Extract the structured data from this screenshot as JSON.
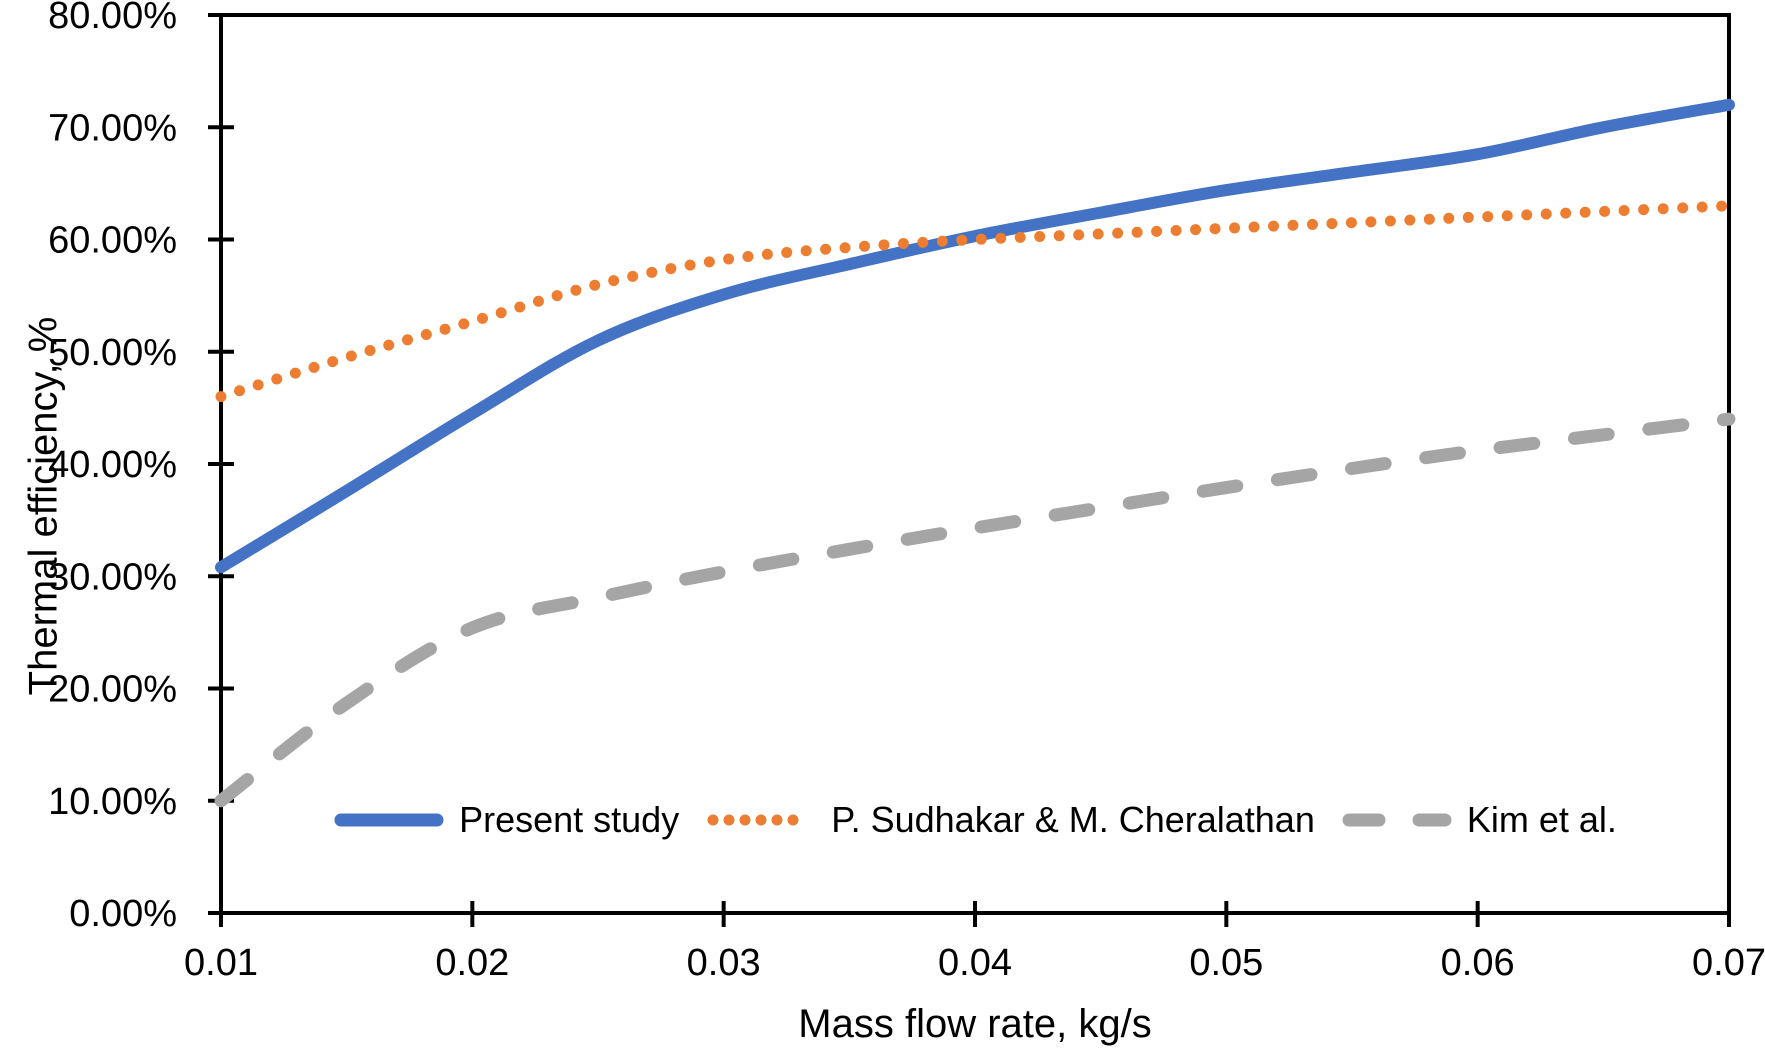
{
  "figure": {
    "background": "#ffffff",
    "axis_color": "#000000",
    "text_color": "#000000"
  },
  "chart_data": {
    "type": "line",
    "title": "",
    "xlabel": "Mass flow rate, kg/s",
    "ylabel": "Thermal efficiency, %",
    "xlim": [
      0.01,
      0.07
    ],
    "ylim": [
      0,
      80
    ],
    "grid": false,
    "legend_position": "inside-bottom",
    "x_ticks": [
      "0.01",
      "0.02",
      "0.03",
      "0.04",
      "0.05",
      "0.06",
      "0.07"
    ],
    "y_ticks": [
      "0.00%",
      "10.00%",
      "20.00%",
      "30.00%",
      "40.00%",
      "50.00%",
      "60.00%",
      "70.00%",
      "80.00%"
    ],
    "x": [
      0.01,
      0.015,
      0.02,
      0.025,
      0.03,
      0.035,
      0.04,
      0.045,
      0.05,
      0.055,
      0.06,
      0.065,
      0.07
    ],
    "series": [
      {
        "name": "Present study",
        "color": "#4472C4",
        "style": "solid",
        "values": [
          30.8,
          37.6,
          44.5,
          51.0,
          55.1,
          57.8,
          60.3,
          62.4,
          64.4,
          66.0,
          67.6,
          70.0,
          72.0
        ]
      },
      {
        "name": "P. Sudhakar & M. Cheralathan",
        "color": "#ED7D31",
        "style": "dotted",
        "values": [
          46.0,
          49.5,
          52.7,
          56.0,
          58.2,
          59.3,
          60.0,
          60.5,
          61.0,
          61.5,
          62.0,
          62.5,
          63.0
        ]
      },
      {
        "name": "Kim et al.",
        "color": "#A5A5A5",
        "style": "dashed",
        "values": [
          10.0,
          18.7,
          25.4,
          28.1,
          30.4,
          32.4,
          34.3,
          36.1,
          37.9,
          39.6,
          41.2,
          42.6,
          44.0
        ]
      }
    ]
  }
}
